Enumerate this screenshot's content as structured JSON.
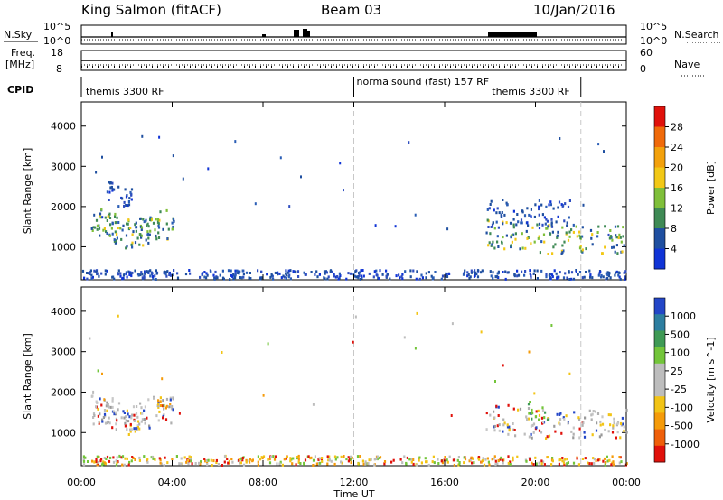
{
  "header": {
    "station": "King Salmon (fitACF)",
    "beam": "Beam 03",
    "date": "10/Jan/2016"
  },
  "summary_panels": {
    "nsky_label": "N.Sky",
    "nsearch_label": "N.Search",
    "freq_label_1": "Freq.",
    "freq_label_2": "[MHz]",
    "nave_label": "Nave",
    "cpid_label": "CPID",
    "left_top_ticks": [
      "10^5",
      "10^0"
    ],
    "right_top_ticks": [
      "10^5",
      "10^0"
    ],
    "left_freq_ticks": [
      "18",
      "8"
    ],
    "right_nave_ticks": [
      "60",
      "0"
    ]
  },
  "cpid_segments": [
    {
      "label": "themis 3300 RF",
      "start_hour": 0,
      "end_hour": 12
    },
    {
      "label": "normalsound (fast) 157 RF",
      "start_hour": 12,
      "end_hour": 22
    },
    {
      "label": "themis 3300 RF",
      "start_hour": 18,
      "end_hour": 22
    }
  ],
  "time_axis": {
    "label": "Time UT",
    "ticks": [
      "00:00",
      "04:00",
      "08:00",
      "12:00",
      "16:00",
      "20:00",
      "00:00"
    ],
    "range_hours": [
      0,
      24
    ]
  },
  "chart_data": [
    {
      "type": "heatmap",
      "quantity": "Power",
      "colorbar_label": "Power [dB]",
      "colorbar_ticks": [
        "28",
        "24",
        "20",
        "16",
        "12",
        "8",
        "4"
      ],
      "colorbar_colors": [
        "#e0110b",
        "#f06a0a",
        "#f3a10c",
        "#f2c816",
        "#7fbf3a",
        "#3f8a55",
        "#1f4fa0",
        "#1034d6"
      ],
      "ylabel": "Slant Range [km]",
      "yticks": [
        "4000",
        "3000",
        "2000",
        "1000"
      ],
      "ylim": [
        180,
        4600
      ],
      "xlim": [
        0,
        24
      ],
      "regions": [
        {
          "t0": 0.4,
          "t1": 4.1,
          "r0": 850,
          "r1": 2100,
          "level": "mid"
        },
        {
          "t0": 1.0,
          "t1": 2.2,
          "r0": 1900,
          "r1": 2800,
          "level": "low"
        },
        {
          "t0": 17.8,
          "t1": 24.0,
          "r0": 850,
          "r1": 1600,
          "level": "mid"
        },
        {
          "t0": 17.8,
          "t1": 21.5,
          "r0": 1500,
          "r1": 2200,
          "level": "low"
        },
        {
          "t0": 0.0,
          "t1": 24.0,
          "r0": 200,
          "r1": 450,
          "level": "low"
        }
      ]
    },
    {
      "type": "heatmap",
      "quantity": "Velocity",
      "colorbar_label": "Velocity [m s^-1]",
      "colorbar_ticks": [
        "1000",
        "500",
        "100",
        "25",
        "-25",
        "-100",
        "-500",
        "-1000"
      ],
      "colorbar_colors": [
        "#2346c7",
        "#2d7ea0",
        "#3f9a55",
        "#73c53a",
        "#bdbdbd",
        "#bdbdbd",
        "#f2c416",
        "#f59b0a",
        "#ef5f0a",
        "#e0110b"
      ],
      "ylabel": "Slant Range [km]",
      "yticks": [
        "4000",
        "3000",
        "2000",
        "1000"
      ],
      "ylim": [
        180,
        4600
      ],
      "xlim": [
        0,
        24
      ],
      "regions": [
        {
          "t0": 0.4,
          "t1": 4.1,
          "r0": 850,
          "r1": 2100,
          "level": "gray"
        },
        {
          "t0": 3.3,
          "t1": 3.9,
          "r0": 1400,
          "r1": 1800,
          "level": "orange"
        },
        {
          "t0": 17.8,
          "t1": 24.0,
          "r0": 850,
          "r1": 1600,
          "level": "gray"
        },
        {
          "t0": 19.6,
          "t1": 20.6,
          "r0": 1300,
          "r1": 1800,
          "level": "green"
        },
        {
          "t0": 0.0,
          "t1": 24.0,
          "r0": 200,
          "r1": 450,
          "level": "yellow"
        }
      ]
    }
  ]
}
